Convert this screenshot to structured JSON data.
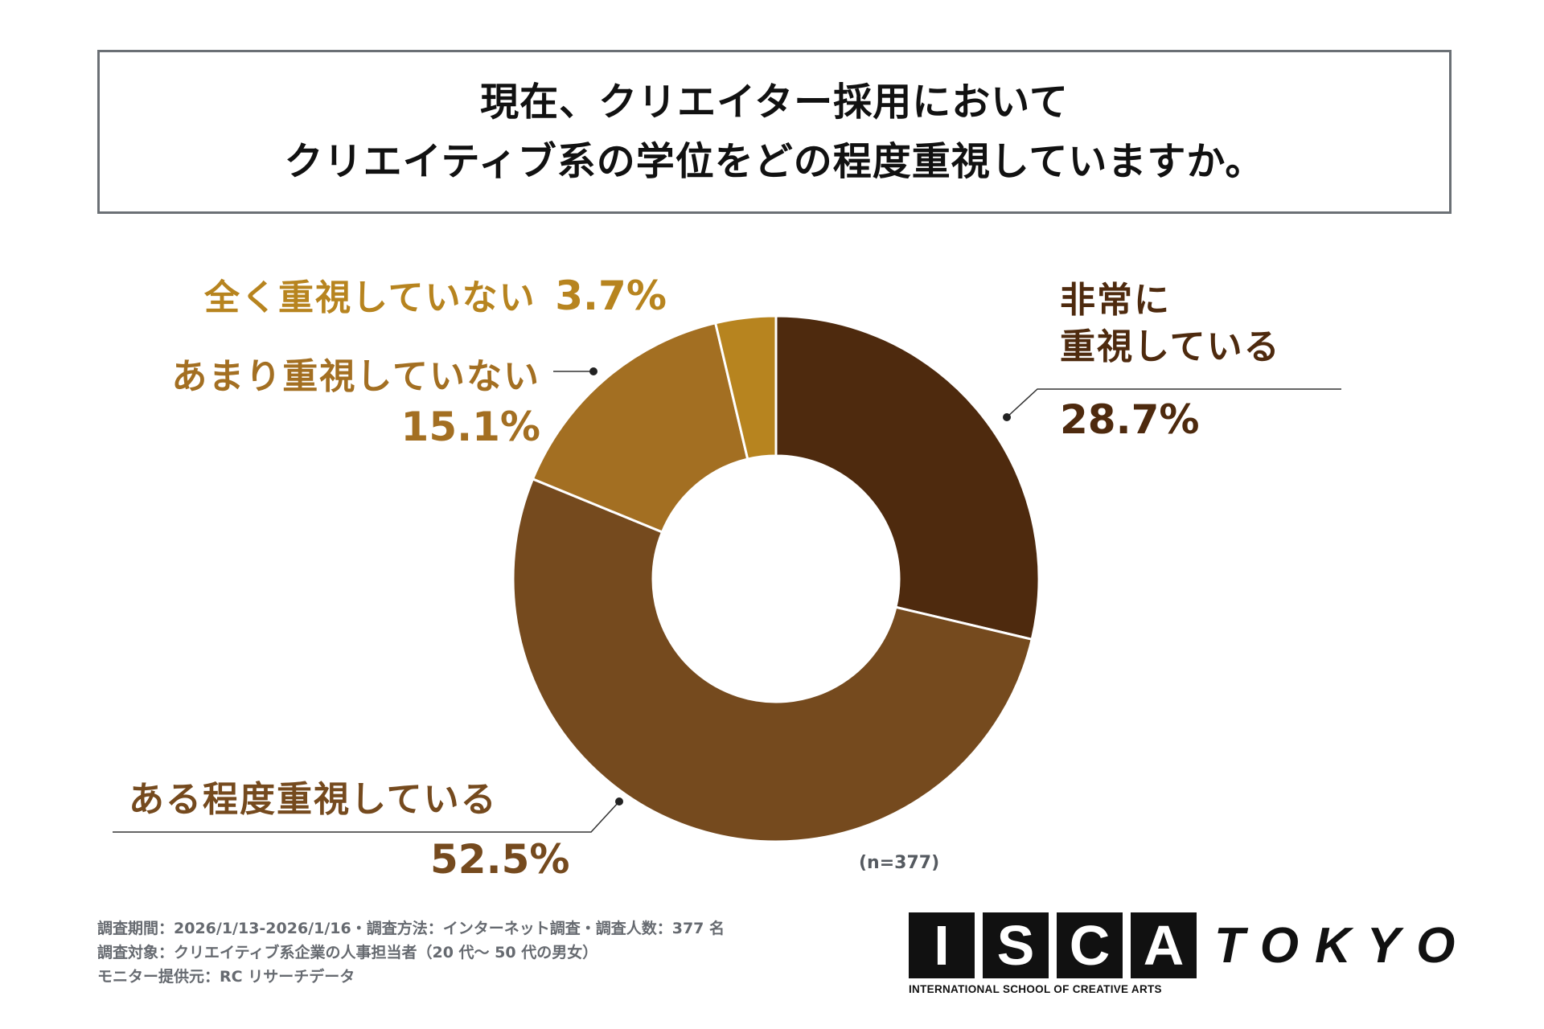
{
  "title": {
    "line1": "現在、クリエイター採用において",
    "line2": "クリエイティブ系の学位をどの程度重視していますか。"
  },
  "chart_data": {
    "type": "pie",
    "title": "現在、クリエイター採用において クリエイティブ系の学位をどの程度重視していますか。",
    "donut": true,
    "start_angle": "12 o'clock, clockwise",
    "slices": [
      {
        "label_lines": [
          "非常に",
          "重視している"
        ],
        "value": 28.7,
        "value_text": "28.7%",
        "color": "#4e2a0e"
      },
      {
        "label_lines": [
          "ある程度重視している"
        ],
        "value": 52.5,
        "value_text": "52.5%",
        "color": "#754a1e"
      },
      {
        "label_lines": [
          "あまり重視していない"
        ],
        "value": 15.1,
        "value_text": "15.1%",
        "color": "#a36f22"
      },
      {
        "label_lines": [
          "全く重視していない"
        ],
        "value": 3.7,
        "value_text": "3.7%",
        "color": "#b7841f"
      }
    ],
    "sample_note": "(n=377)"
  },
  "footer": {
    "line1": "調査期間：2026/1/13-2026/1/16・調査方法：インターネット調査・調査人数：377 名",
    "line2": "調査対象：クリエイティブ系企業の人事担当者（20 代〜 50 代の男女）",
    "line3": "モニター提供元：RC リサーチデータ"
  },
  "logo": {
    "letters": [
      "I",
      "S",
      "C",
      "A"
    ],
    "subtitle": "INTERNATIONAL SCHOOL OF CREATIVE ARTS",
    "city": "TOKYO"
  }
}
